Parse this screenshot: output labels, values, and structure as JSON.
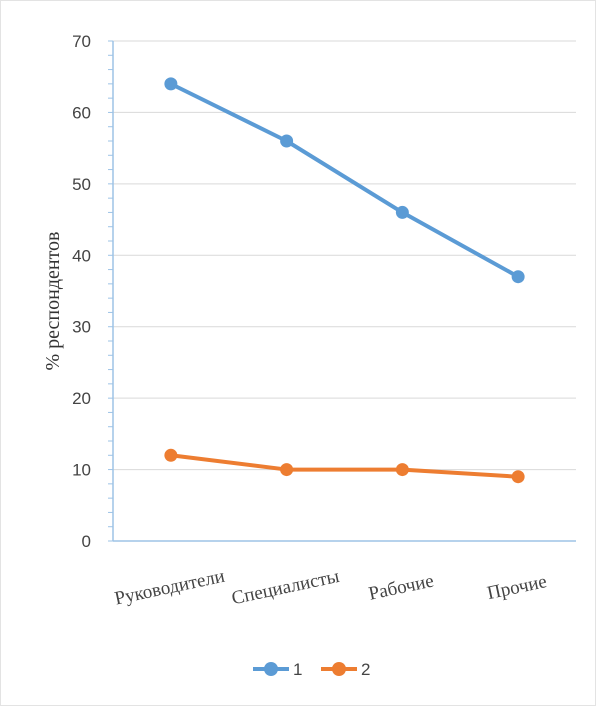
{
  "chart_data": {
    "type": "line",
    "title": "",
    "xlabel": "",
    "ylabel": "% респондентов",
    "categories": [
      "Руководители",
      "Специалисты",
      "Рабочие",
      "Прочие"
    ],
    "ylim": [
      0,
      70
    ],
    "yticks": [
      0,
      10,
      20,
      30,
      40,
      50,
      60,
      70
    ],
    "grid": true,
    "legend_position": "bottom",
    "series": [
      {
        "name": "1",
        "color": "#5B9BD5",
        "values": [
          64,
          56,
          46,
          37
        ]
      },
      {
        "name": "2",
        "color": "#ED7D31",
        "values": [
          12,
          10,
          10,
          9
        ]
      }
    ]
  }
}
